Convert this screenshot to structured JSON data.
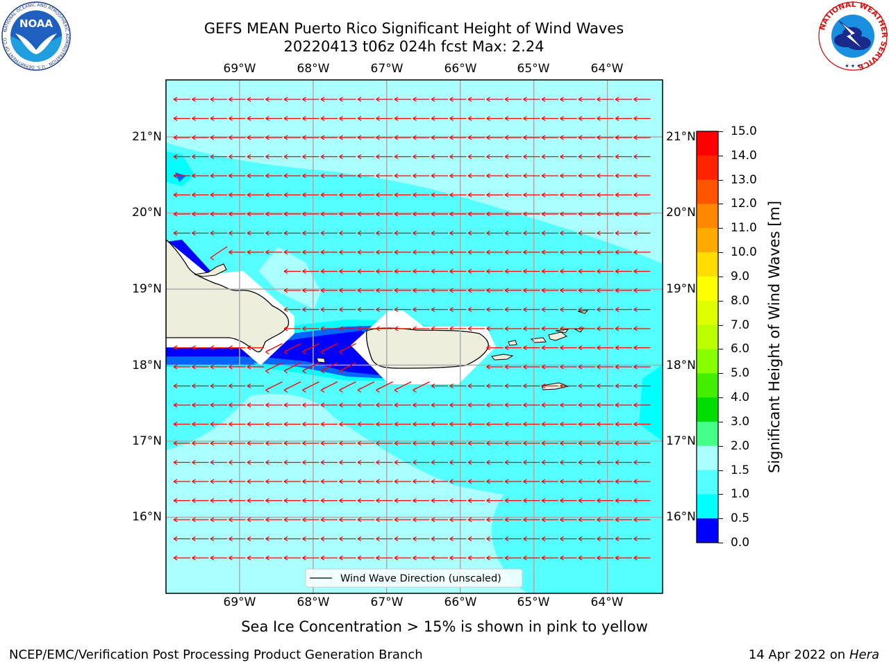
{
  "title": {
    "line1": "GEFS MEAN Puerto Rico Significant Height of Wind Waves",
    "line2": "20220413 t06z 024h fcst   Max: 2.24"
  },
  "logos": {
    "noaa_text": "NOAA",
    "noaa_ring": "NATIONAL OCEANIC AND ATMOSPHERIC ADMINISTRATION · U.S. DEPARTMENT OF COMMERCE",
    "nws_ring": "NATIONAL WEATHER SERVICE"
  },
  "map": {
    "lon_range": [
      -70,
      -63.25
    ],
    "lat_range": [
      15,
      21.75
    ],
    "lon_ticks": [
      "69°W",
      "68°W",
      "67°W",
      "66°W",
      "65°W",
      "64°W"
    ],
    "lat_ticks": [
      "16°N",
      "17°N",
      "18°N",
      "19°N",
      "20°N",
      "21°N"
    ],
    "right_lat_ticks": [
      "16°N",
      "17°N",
      "18°N",
      "19°N",
      "20°N",
      "21°N"
    ],
    "grid": true,
    "arrow_color": "#ff0000",
    "legend": {
      "label": "Wind Wave Direction (unscaled)",
      "placement": "lower-center"
    },
    "colors": {
      "sea_light": "#aaffff",
      "sea_mid": "#55ffff",
      "sea_bright": "#00ffff",
      "sea_blue": "#0066ff",
      "sea_deep": "#0000ff",
      "land": "#eeeedd"
    }
  },
  "colorbar": {
    "label": "Significant Height of Wind Waves [m]",
    "ticks": [
      "15.0",
      "14.0",
      "13.0",
      "12.0",
      "11.0",
      "10.0",
      "9.0",
      "8.0",
      "7.0",
      "6.0",
      "5.0",
      "4.0",
      "3.0",
      "2.0",
      "1.5",
      "1.0",
      "0.5",
      "0.0"
    ],
    "colors": [
      "#ff0000",
      "#ff2200",
      "#ff5500",
      "#ff8800",
      "#ffaa00",
      "#ffdd00",
      "#ffff00",
      "#ddff00",
      "#bbff00",
      "#88ff00",
      "#44ee00",
      "#00dd00",
      "#44ff88",
      "#aaffff",
      "#55ffff",
      "#00ffff",
      "#0077ff",
      "#0000ff"
    ]
  },
  "caption": "Sea Ice Concentration > 15% is shown in pink to yellow",
  "footer": {
    "left": "NCEP/EMC/Verification Post Processing Product Generation Branch",
    "right_prefix": "14 Apr 2022 on ",
    "right_machine": "Hera"
  }
}
